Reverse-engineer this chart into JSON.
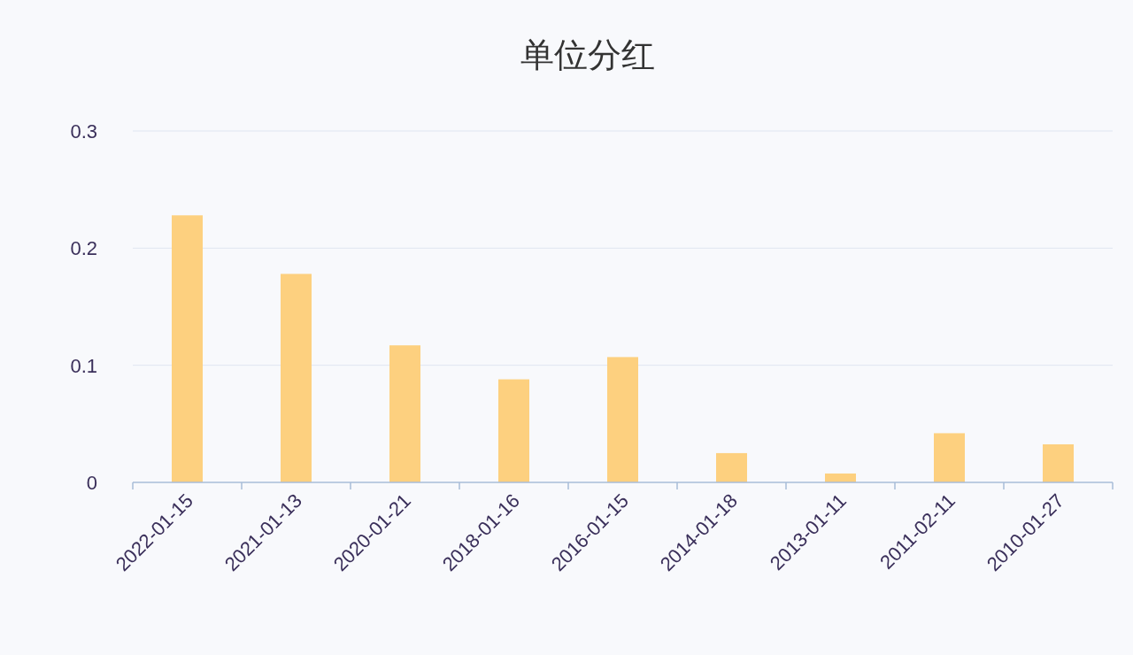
{
  "chart_data": {
    "type": "bar",
    "title": "单位分红",
    "categories": [
      "2022-01-15",
      "2021-01-13",
      "2020-01-21",
      "2018-01-16",
      "2016-01-15",
      "2014-01-18",
      "2013-01-11",
      "2011-02-11",
      "2010-01-27"
    ],
    "values": [
      0.228,
      0.178,
      0.117,
      0.088,
      0.107,
      0.025,
      0.0076,
      0.042,
      0.0325
    ],
    "color": "#fdd07f",
    "ylim": [
      0,
      0.3
    ],
    "yticks": [
      0,
      0.1,
      0.2,
      0.3
    ],
    "grid": "y"
  }
}
